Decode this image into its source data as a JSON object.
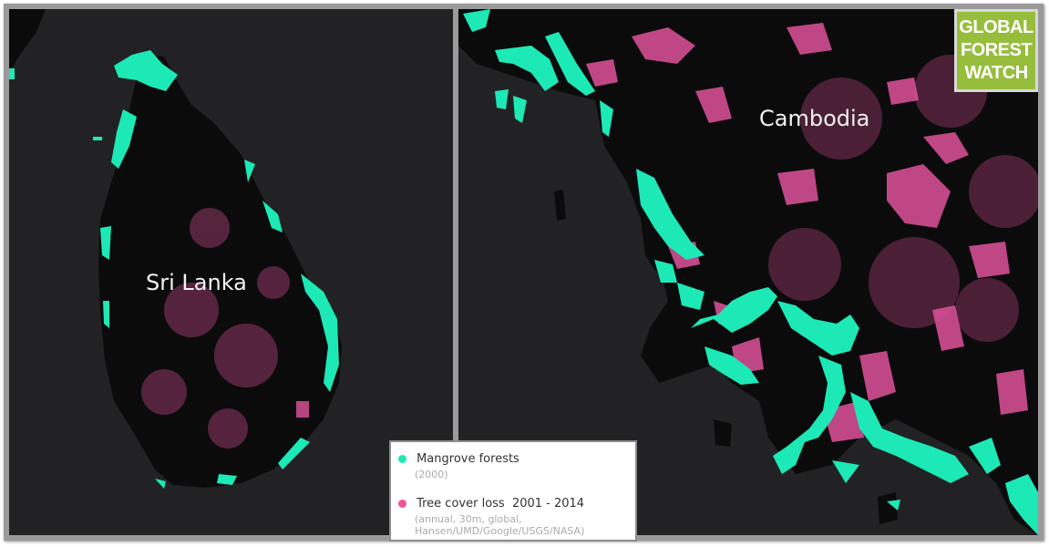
{
  "map_left": {
    "place_label": "Sri Lanka"
  },
  "map_right": {
    "place_label": "Cambodia"
  },
  "logo": {
    "line1": "GLOBAL",
    "line2": "FOREST",
    "line3": "WATCH",
    "color": "#97bd3d"
  },
  "legend": {
    "items": [
      {
        "label": "Mangrove forests",
        "detail": "(2000)",
        "color": "#1de9b6"
      },
      {
        "label": "Tree cover loss  2001 - 2014",
        "detail_line1": "(annual, 30m, global,",
        "detail_line2": "Hansen/UMD/Google/USGS/NASA)",
        "color": "#f0529c"
      }
    ]
  },
  "colors": {
    "background": "#222224",
    "land": "#0b0b0c",
    "mangrove": "#1de9b6",
    "loss": "#e0529c"
  }
}
